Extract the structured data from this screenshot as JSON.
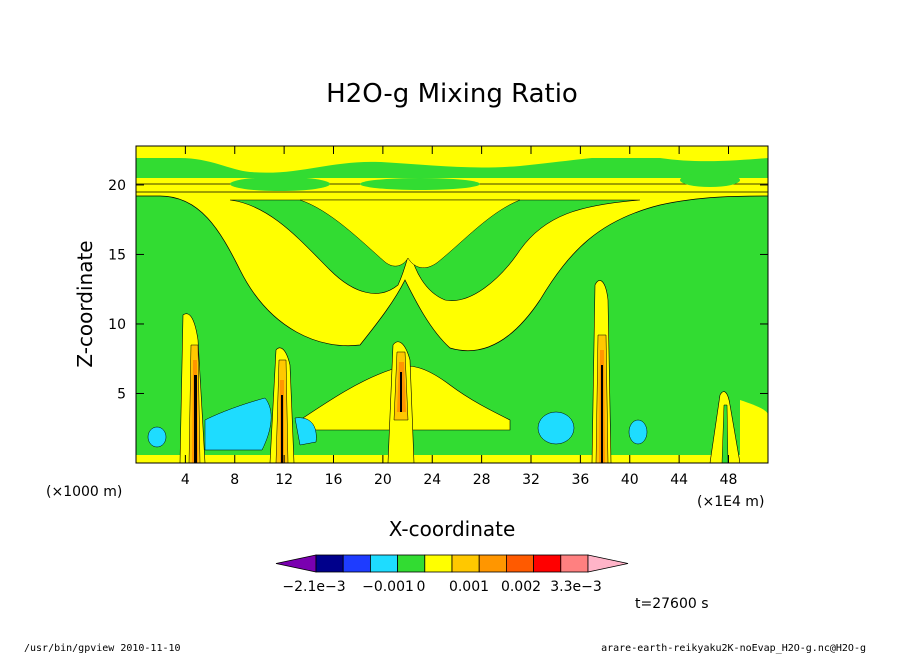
{
  "chart_data": {
    "type": "heatmap",
    "title": "H2O-g Mixing Ratio",
    "xlabel": "X-coordinate",
    "ylabel": "Z-coordinate",
    "x_unit_left": "(×1000 m)",
    "x_unit_right": "(×1E4 m)",
    "xlim": [
      0,
      51.2
    ],
    "ylim": [
      0,
      22.8
    ],
    "x_ticks": [
      4,
      8,
      12,
      16,
      20,
      24,
      28,
      32,
      36,
      40,
      44,
      48
    ],
    "y_ticks": [
      5,
      10,
      15,
      20
    ],
    "colorbar": {
      "colors": [
        "#7a00b0",
        "#00008b",
        "#1e3cff",
        "#1edcff",
        "#32dc32",
        "#ffff00",
        "#ffc800",
        "#ff9600",
        "#ff5a00",
        "#ff0000",
        "#ff8080",
        "#ffb4c8"
      ],
      "labels": [
        "−2.1e−3",
        "−0.001",
        "0",
        "0.001",
        "0.002",
        "3.3e−3"
      ]
    },
    "time_label": "t=27600 s",
    "footer_left": "/usr/bin/gpview  2010-11-10",
    "footer_right": "arare-earth-reikyaku2K-noEvap_H2O-g.nc@H2O-g"
  }
}
